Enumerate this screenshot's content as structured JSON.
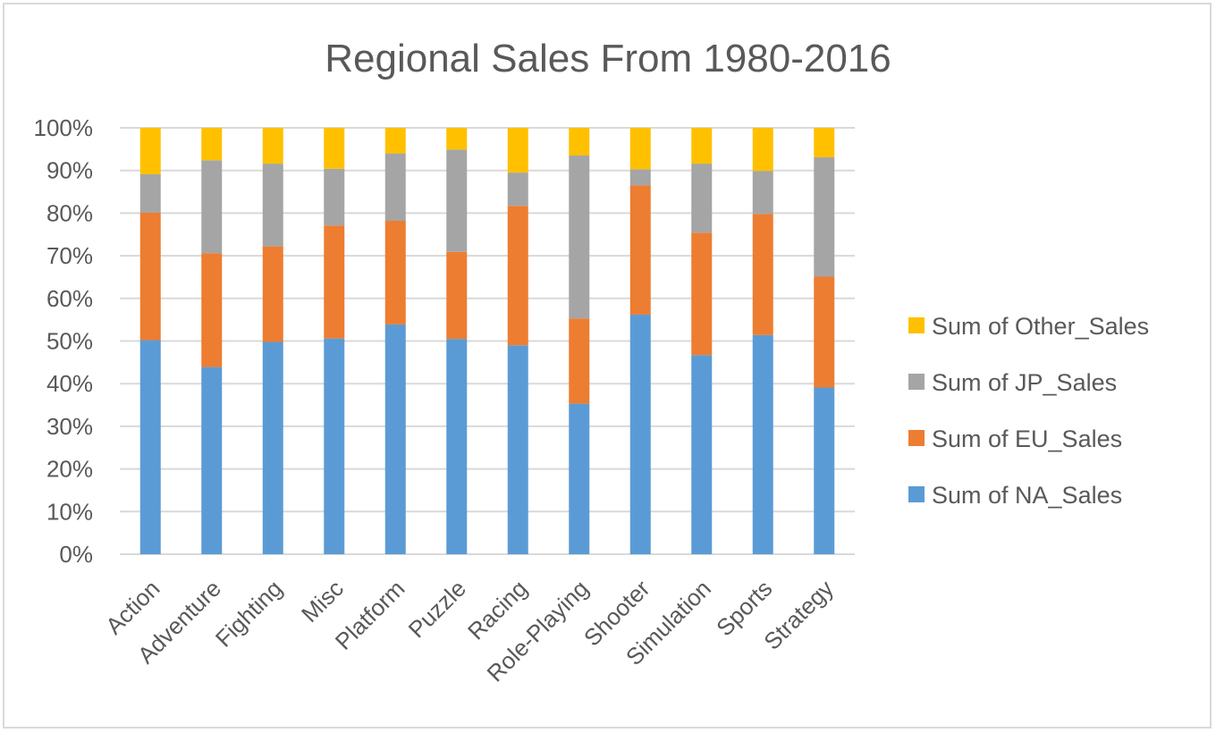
{
  "chart_data": {
    "type": "bar",
    "stacked": "percent",
    "title": "Regional Sales From 1980-2016",
    "categories": [
      "Action",
      "Adventure",
      "Fighting",
      "Misc",
      "Platform",
      "Puzzle",
      "Racing",
      "Role-Playing",
      "Shooter",
      "Simulation",
      "Sports",
      "Strategy"
    ],
    "y_ticks": [
      "0%",
      "10%",
      "20%",
      "30%",
      "40%",
      "50%",
      "60%",
      "70%",
      "80%",
      "90%",
      "100%"
    ],
    "ylim": [
      0,
      100
    ],
    "grid": true,
    "legend_position": "right",
    "series": [
      {
        "name": "Sum of NA_Sales",
        "color": "#5B9BD5",
        "values": [
          50.2,
          43.9,
          49.8,
          50.6,
          53.9,
          50.5,
          49.0,
          35.3,
          56.2,
          46.7,
          51.4,
          39.1
        ]
      },
      {
        "name": "Sum of EU_Sales",
        "color": "#ED7D31",
        "values": [
          29.9,
          26.7,
          22.4,
          26.5,
          24.3,
          20.4,
          32.7,
          20.0,
          30.3,
          28.7,
          28.4,
          26.0
        ]
      },
      {
        "name": "Sum of JP_Sales",
        "color": "#A5A5A5",
        "values": [
          9.0,
          21.8,
          19.4,
          13.3,
          15.8,
          24.0,
          7.8,
          38.2,
          3.8,
          16.2,
          10.1,
          28.0
        ]
      },
      {
        "name": "Sum of Other_Sales",
        "color": "#FFC000",
        "values": [
          10.9,
          7.6,
          8.4,
          9.6,
          6.0,
          5.1,
          10.5,
          6.5,
          9.7,
          8.4,
          10.1,
          6.9
        ]
      }
    ]
  }
}
